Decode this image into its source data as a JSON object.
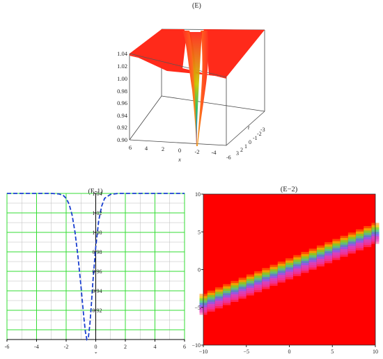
{
  "figure": {
    "top_title": "(E)",
    "left_title": "(E-1)",
    "right_title": "(E-2)"
  },
  "chart_data": [
    {
      "type": "surface3d",
      "title": "(E)",
      "xlabel": "x",
      "ylabel": "t",
      "zlabel": "",
      "x_ticks": [
        6,
        4,
        2,
        0,
        -2,
        -4
      ],
      "t_ticks": [
        -3,
        -2,
        -1,
        0,
        1,
        2,
        3,
        -6
      ],
      "t_tick_labels": [
        "3",
        "2",
        "1",
        "0",
        "-1",
        "-2",
        "-3",
        "-6"
      ],
      "z_ticks": [
        "1.04",
        "1.02",
        "1.00",
        "0.98",
        "0.96",
        "0.94",
        "0.92",
        "0.90"
      ],
      "zlim": [
        0.9,
        1.04
      ],
      "description_values": {
        "plateau": 1.04,
        "minimum": 0.9,
        "min_x": -1.5
      },
      "colors": {
        "plateau": "#ff2a1a",
        "mid": "#c8c800",
        "low": "#00c060",
        "bottom": "#a000ff"
      }
    },
    {
      "type": "line",
      "title": "(E-1)",
      "xlabel": "x",
      "ylabel": "",
      "xlim": [
        -6,
        6
      ],
      "ylim": [
        0.89,
        1.04
      ],
      "x_ticks": [
        "-6",
        "-4",
        "-2",
        "0",
        "2",
        "4",
        "6"
      ],
      "y_ticks": [
        "1.04",
        "1.02",
        "1.00",
        "0.98",
        "0.96",
        "0.94",
        "0.92"
      ],
      "grid": true,
      "series": [
        {
          "style": "dashed",
          "color": "#1a3fd0",
          "x": [
            -6,
            -3,
            -2.5,
            -2.2,
            -2.0,
            -1.8,
            -1.6,
            -1.4,
            -1.2,
            -1.0,
            -0.9,
            -0.8,
            -0.7,
            -0.6,
            -0.5,
            -0.4,
            -0.3,
            -0.2,
            0.0,
            0.2,
            0.4,
            0.6,
            1.0,
            1.5,
            2.0,
            6
          ],
          "y": [
            1.04,
            1.04,
            1.0395,
            1.038,
            1.035,
            1.029,
            1.018,
            1.0,
            0.975,
            0.945,
            0.928,
            0.912,
            0.898,
            0.89,
            0.892,
            0.905,
            0.925,
            0.948,
            0.985,
            1.012,
            1.027,
            1.035,
            1.039,
            1.04,
            1.04,
            1.04
          ]
        }
      ]
    },
    {
      "type": "heatmap",
      "title": "(E−2)",
      "xlim": [
        -10,
        10
      ],
      "ylim": [
        -10,
        10
      ],
      "x_ticks": [
        "−10",
        "−5",
        "0",
        "5",
        "10"
      ],
      "y_ticks": [
        "10",
        "5",
        "0",
        "−5",
        "−10"
      ],
      "background_color": "#ff0000",
      "band": {
        "start": [
          -10,
          -4.6
        ],
        "end": [
          10,
          4.8
        ]
      },
      "band_colors": [
        "#ff8800",
        "#e8e800",
        "#40e040",
        "#40c0c0",
        "#6060ff",
        "#c040ff",
        "#ff40a0"
      ]
    }
  ]
}
